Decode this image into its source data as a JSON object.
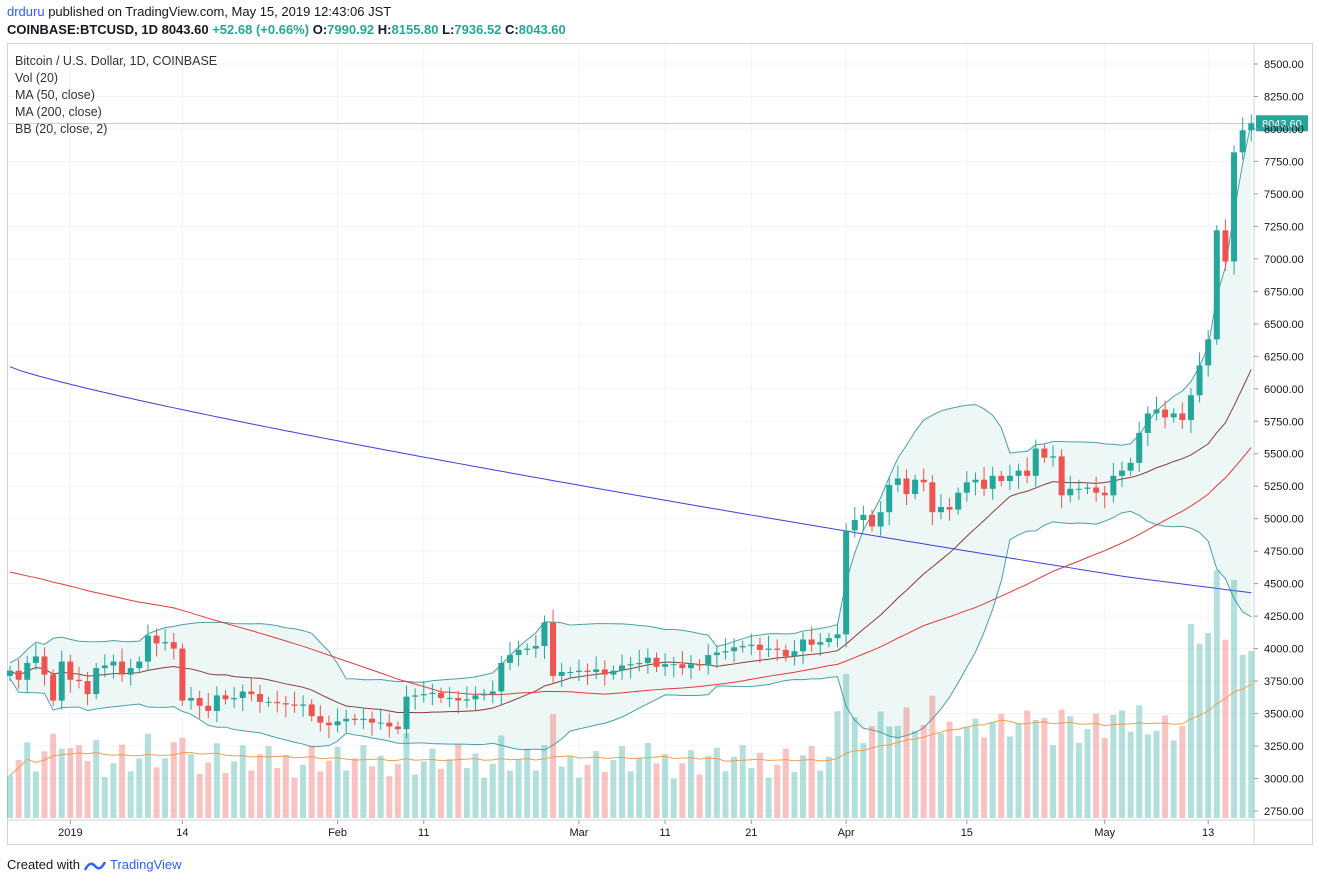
{
  "header": {
    "user": "drduru",
    "published": "published on TradingView.com, May 15, 2019 12:43:06 JST",
    "symbol": "COINBASE:BTCUSD, 1D",
    "last": "8043.60",
    "change": "+52.68 (+0.66%)",
    "o_label": "O:",
    "o": "7990.92",
    "h_label": "H:",
    "h": "8155.80",
    "l_label": "L:",
    "l": "7936.52",
    "c_label": "C:",
    "c": "8043.60"
  },
  "legend": {
    "title": "Bitcoin / U.S. Dollar, 1D, COINBASE",
    "vol": "Vol (20)",
    "ma50": "MA (50, close)",
    "ma200": "MA (200, close)",
    "bb": "BB (20, close, 2)"
  },
  "footer": {
    "created": "Created with",
    "brand": "TradingView"
  },
  "colors": {
    "up": "#26a69a",
    "down": "#ef5350",
    "ma50": "#e53935",
    "ma20": "#8d3a3a",
    "ma200": "#3f3fe0",
    "bb": "#4aa0a8",
    "bbfill": "#e8f5f4",
    "vol_ma": "#f39c4f"
  },
  "chart_data": {
    "type": "candlestick",
    "title": "Bitcoin / U.S. Dollar, 1D, COINBASE",
    "ylim": [
      2700,
      8600
    ],
    "y_ticks": [
      "8500.00",
      "8250.00",
      "8000.00",
      "7750.00",
      "7500.00",
      "7250.00",
      "7000.00",
      "6750.00",
      "6500.00",
      "6250.00",
      "6000.00",
      "5750.00",
      "5500.00",
      "5250.00",
      "5000.00",
      "4750.00",
      "4500.00",
      "4250.00",
      "4000.00",
      "3750.00",
      "3500.00",
      "3250.00",
      "3000.00",
      "2750.00"
    ],
    "x_labels": [
      {
        "label": "2019",
        "day": 7
      },
      {
        "label": "14",
        "day": 20
      },
      {
        "label": "Feb",
        "day": 38
      },
      {
        "label": "11",
        "day": 48
      },
      {
        "label": "Mar",
        "day": 66
      },
      {
        "label": "11",
        "day": 76
      },
      {
        "label": "21",
        "day": 86
      },
      {
        "label": "Apr",
        "day": 97
      },
      {
        "label": "15",
        "day": 111
      },
      {
        "label": "May",
        "day": 127
      },
      {
        "label": "13",
        "day": 139
      }
    ],
    "last_price_label": "8043.60",
    "last_price": 8043.6,
    "closes": [
      3830,
      3760,
      3890,
      3940,
      3800,
      3600,
      3900,
      3760,
      3750,
      3650,
      3850,
      3870,
      3900,
      3800,
      3850,
      3900,
      4100,
      4040,
      4050,
      4000,
      3600,
      3620,
      3560,
      3520,
      3640,
      3610,
      3620,
      3670,
      3650,
      3590,
      3590,
      3580,
      3570,
      3560,
      3570,
      3480,
      3430,
      3410,
      3440,
      3460,
      3450,
      3460,
      3430,
      3430,
      3400,
      3380,
      3630,
      3640,
      3650,
      3660,
      3620,
      3620,
      3600,
      3610,
      3640,
      3650,
      3670,
      3890,
      3950,
      3990,
      4000,
      4020,
      4200,
      3790,
      3820,
      3820,
      3830,
      3820,
      3840,
      3800,
      3830,
      3870,
      3880,
      3890,
      3930,
      3860,
      3880,
      3880,
      3850,
      3880,
      3870,
      3950,
      3970,
      3980,
      4010,
      4020,
      4030,
      3990,
      4000,
      3990,
      3940,
      3980,
      4070,
      4030,
      4050,
      4080,
      4110,
      4910,
      4990,
      5030,
      4940,
      5050,
      5260,
      5310,
      5190,
      5300,
      5280,
      5050,
      5090,
      5070,
      5200,
      5280,
      5300,
      5230,
      5330,
      5290,
      5330,
      5370,
      5330,
      5540,
      5470,
      5480,
      5180,
      5230,
      5230,
      5240,
      5200,
      5180,
      5330,
      5370,
      5430,
      5660,
      5810,
      5840,
      5780,
      5810,
      5760,
      5950,
      6180,
      6380,
      7220,
      6980,
      7820,
      7990,
      8043.6
    ],
    "ma50_start": 4590,
    "ma200_start": 6170,
    "volume_note": "daily volume bars with 20-day volume MA at bottom of chart"
  }
}
